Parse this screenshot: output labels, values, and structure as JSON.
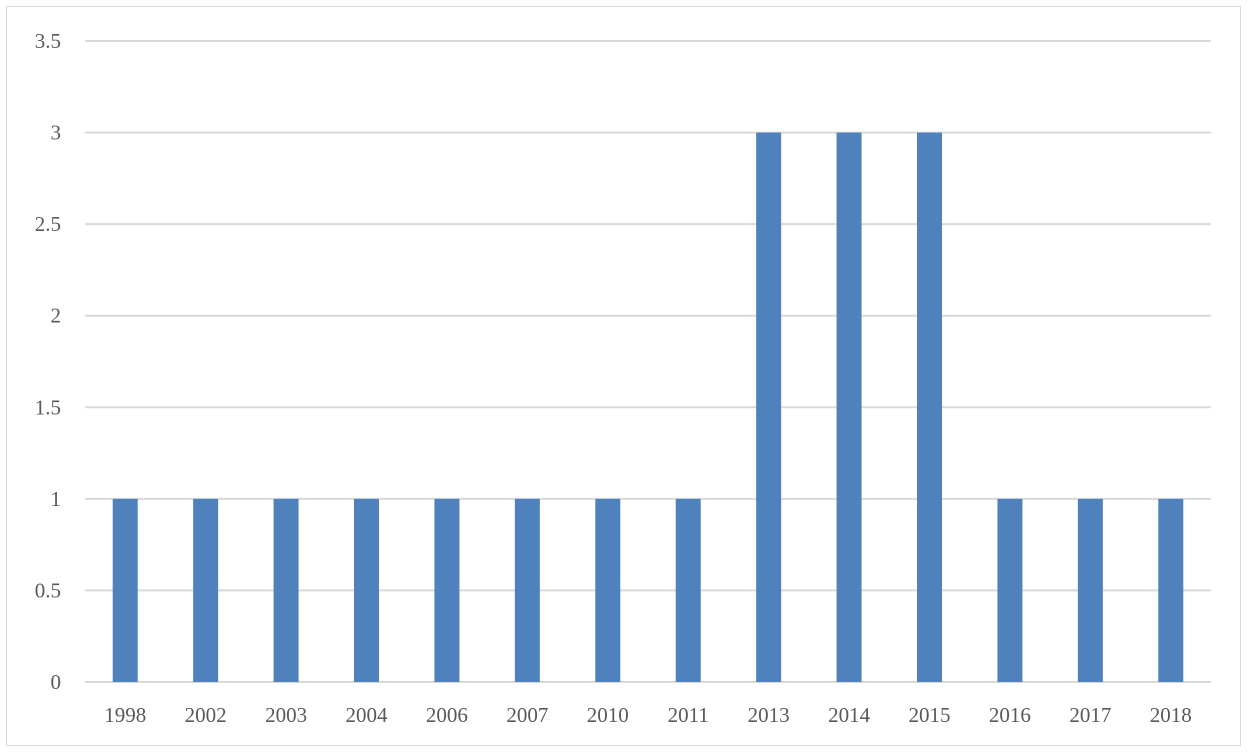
{
  "chart_data": {
    "type": "bar",
    "title": "",
    "xlabel": "",
    "ylabel": "",
    "categories": [
      "1998",
      "2002",
      "2003",
      "2004",
      "2006",
      "2007",
      "2010",
      "2011",
      "2013",
      "2014",
      "2015",
      "2016",
      "2017",
      "2018"
    ],
    "values": [
      1,
      1,
      1,
      1,
      1,
      1,
      1,
      1,
      3,
      3,
      3,
      1,
      1,
      1
    ],
    "ylim": [
      0,
      3.5
    ],
    "yticks": [
      "0",
      "0.5",
      "1",
      "1.5",
      "2",
      "2.5",
      "3",
      "3.5"
    ],
    "grid": true,
    "legend": "none",
    "bar_color": "#4f81bd",
    "grid_color": "#d9d9d9",
    "text_color": "#595959"
  }
}
